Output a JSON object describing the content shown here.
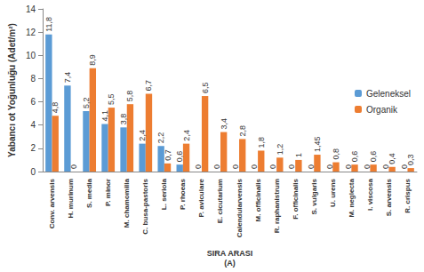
{
  "chart_data": {
    "type": "bar",
    "xlabel": "SIRA ARASI\n(A)",
    "ylabel": "Yabancı ot Yoğunluğu (Adet/m²)",
    "categories": [
      "Conv. arvensis",
      "H. murinum",
      "S. media",
      "P. minor",
      "M. chamomilla",
      "C. busa-pastoris",
      "L. seriola",
      "P. rhoeas",
      "P. aviculare",
      "E. cicutarium",
      "Calendularvensis",
      "M. officinalis",
      "R. raphanistrum",
      "F. officinalis",
      "S. vulgaris",
      "U. urens",
      "M. neglecta",
      "I. viscosa",
      "S. arvensis",
      "R. crispus"
    ],
    "series": [
      {
        "name": "Geleneksel",
        "color": "#5b9bd5",
        "values": [
          11.8,
          7.4,
          5.2,
          4.1,
          3.8,
          2.4,
          2.2,
          0.6,
          0,
          0,
          0,
          0,
          0,
          0,
          0,
          0,
          0,
          0,
          0,
          0
        ],
        "value_labels": [
          "11,8",
          "7,4",
          "5,2",
          "4,1",
          "3,8",
          "2,4",
          "2,2",
          "0,6",
          "0",
          "0",
          "0",
          "0",
          "0",
          "0",
          "0",
          "0",
          "0",
          "0",
          "0",
          "0"
        ]
      },
      {
        "name": "Organik",
        "color": "#ed7d31",
        "values": [
          4.8,
          0,
          8.9,
          5.5,
          5.8,
          6.7,
          0.7,
          2.4,
          6.5,
          3.4,
          2.8,
          1.8,
          1.2,
          1,
          1.45,
          0.8,
          0.6,
          0.6,
          0.4,
          0.3
        ],
        "value_labels": [
          "4,8",
          "0",
          "8,9",
          "5,5",
          "5,8",
          "6,7",
          "0,7",
          "2,4",
          "6,5",
          "3,4",
          "2,8",
          "1,8",
          "1,2",
          "1",
          "1,45",
          "0,8",
          "0,6",
          "0,6",
          "0,4",
          "0,3"
        ]
      }
    ],
    "ylim": [
      0,
      14
    ],
    "yticks": [
      0,
      2,
      4,
      6,
      8,
      10,
      12,
      14
    ],
    "grid": false,
    "legend": "right",
    "data_labels": true
  }
}
